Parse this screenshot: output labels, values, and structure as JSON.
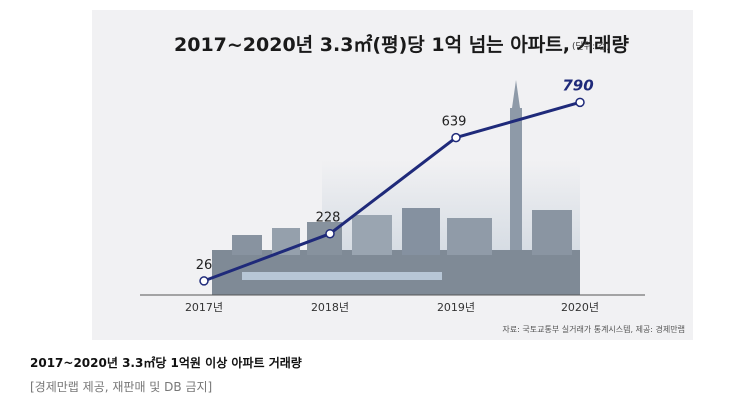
{
  "caption": {
    "title": "2017~2020년 3.3㎡당 1억원 이상 아파트 거래량",
    "sub": "[경제만랩 제공, 재판매 및 DB 금지]"
  },
  "chart_data": {
    "type": "line",
    "title": "2017~2020년 3.3㎡(평)당 1억 넘는 아파트, 거래량",
    "unit": "(단위: 건)",
    "categories": [
      "2017년",
      "2018년",
      "2019년",
      "2020년"
    ],
    "values": [
      26,
      228,
      639,
      790
    ],
    "value_labels": [
      "26",
      "228",
      "639",
      "790"
    ],
    "source": "자료: 국토교통부 실거래가 통계시스템, 제공: 경제만랩",
    "ylim": [
      0,
      800
    ],
    "grid": false,
    "colors": {
      "line": "#1f2a7a",
      "marker_fill": "#ffffff",
      "axis": "#555555",
      "background": "#f1f1f3"
    }
  }
}
